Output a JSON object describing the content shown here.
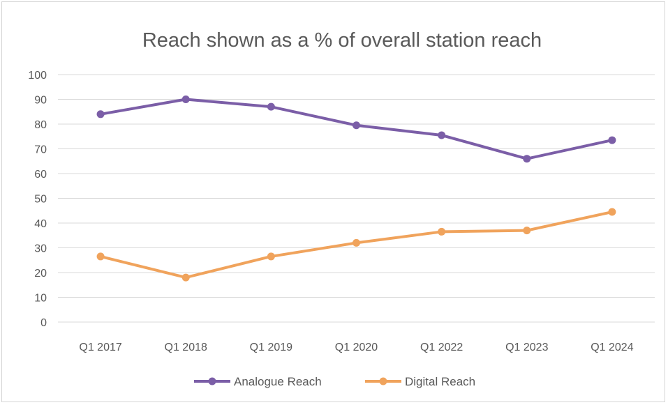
{
  "chart_data": {
    "type": "line",
    "title": "Reach shown as a % of overall station reach",
    "xlabel": "",
    "ylabel": "",
    "categories": [
      "Q1 2017",
      "Q1 2018",
      "Q1 2019",
      "Q1 2020",
      "Q1 2022",
      "Q1 2023",
      "Q1 2024"
    ],
    "ylim": [
      0,
      100
    ],
    "yticks": [
      0,
      10,
      20,
      30,
      40,
      50,
      60,
      70,
      80,
      90,
      100
    ],
    "grid": true,
    "legend_position": "bottom",
    "series": [
      {
        "name": "Analogue Reach",
        "color": "#7b5ea7",
        "values": [
          84,
          90,
          87,
          79.5,
          75.5,
          66,
          73.5
        ]
      },
      {
        "name": "Digital Reach",
        "color": "#f0a35c",
        "values": [
          26.5,
          18,
          26.5,
          32,
          36.5,
          37,
          44.5
        ]
      }
    ]
  }
}
